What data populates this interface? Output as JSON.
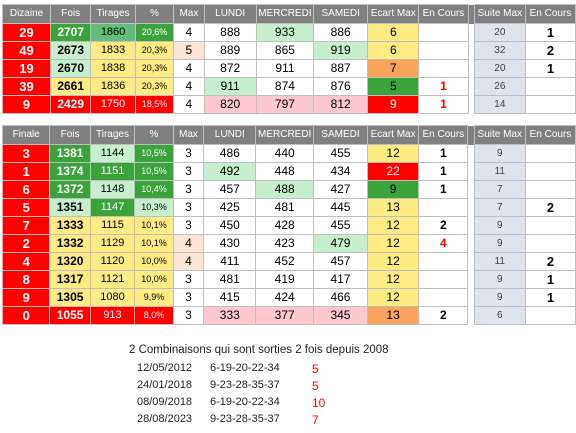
{
  "table1": {
    "headers": [
      "Dizaine",
      "Fois",
      "Tirages",
      "%",
      "Max",
      "LUNDI",
      "MERCREDI",
      "SAMEDI",
      "Ecart Max",
      "En Cours",
      "Suite Max",
      "En Cours"
    ],
    "rows": [
      {
        "label": "29",
        "fois": "2707",
        "tirages": "1860",
        "pct": "20,6%",
        "max": "4",
        "lundi": "888",
        "mercredi": "933",
        "samedi": "886",
        "ecart": "6",
        "encours": "",
        "suite": "20",
        "encours2": "1"
      },
      {
        "label": "49",
        "fois": "2673",
        "tirages": "1833",
        "pct": "20,3%",
        "max": "5",
        "lundi": "889",
        "mercredi": "865",
        "samedi": "919",
        "ecart": "6",
        "encours": "",
        "suite": "32",
        "encours2": "2"
      },
      {
        "label": "19",
        "fois": "2670",
        "tirages": "1838",
        "pct": "20,3%",
        "max": "4",
        "lundi": "872",
        "mercredi": "911",
        "samedi": "887",
        "ecart": "7",
        "encours": "",
        "suite": "20",
        "encours2": "1"
      },
      {
        "label": "39",
        "fois": "2661",
        "tirages": "1836",
        "pct": "20,3%",
        "max": "4",
        "lundi": "911",
        "mercredi": "874",
        "samedi": "876",
        "ecart": "5",
        "encours": "1",
        "suite": "26",
        "encours2": ""
      },
      {
        "label": "9",
        "fois": "2429",
        "tirages": "1750",
        "pct": "18,5%",
        "max": "4",
        "lundi": "820",
        "mercredi": "797",
        "samedi": "812",
        "ecart": "9",
        "encours": "1",
        "suite": "14",
        "encours2": ""
      }
    ]
  },
  "table2": {
    "headers": [
      "Finale",
      "Fois",
      "Tirages",
      "%",
      "Max",
      "LUNDI",
      "MERCREDI",
      "SAMEDI",
      "Ecart Max",
      "En Cours",
      "Suite Max",
      "En Cours"
    ],
    "rows": [
      {
        "label": "3",
        "fois": "1381",
        "tirages": "1144",
        "pct": "10,5%",
        "max": "3",
        "lundi": "486",
        "mercredi": "440",
        "samedi": "455",
        "ecart": "12",
        "encours": "1",
        "suite": "9",
        "encours2": ""
      },
      {
        "label": "1",
        "fois": "1374",
        "tirages": "1151",
        "pct": "10,5%",
        "max": "3",
        "lundi": "492",
        "mercredi": "448",
        "samedi": "434",
        "ecart": "22",
        "encours": "1",
        "suite": "11",
        "encours2": ""
      },
      {
        "label": "6",
        "fois": "1372",
        "tirages": "1148",
        "pct": "10,4%",
        "max": "3",
        "lundi": "457",
        "mercredi": "488",
        "samedi": "427",
        "ecart": "9",
        "encours": "1",
        "suite": "7",
        "encours2": ""
      },
      {
        "label": "5",
        "fois": "1351",
        "tirages": "1147",
        "pct": "10,3%",
        "max": "3",
        "lundi": "425",
        "mercredi": "481",
        "samedi": "445",
        "ecart": "13",
        "encours": "",
        "suite": "7",
        "encours2": "2"
      },
      {
        "label": "7",
        "fois": "1333",
        "tirages": "1115",
        "pct": "10,1%",
        "max": "3",
        "lundi": "450",
        "mercredi": "428",
        "samedi": "455",
        "ecart": "12",
        "encours": "2",
        "suite": "9",
        "encours2": ""
      },
      {
        "label": "2",
        "fois": "1332",
        "tirages": "1129",
        "pct": "10,1%",
        "max": "4",
        "lundi": "430",
        "mercredi": "423",
        "samedi": "479",
        "ecart": "12",
        "encours": "4",
        "suite": "9",
        "encours2": ""
      },
      {
        "label": "4",
        "fois": "1320",
        "tirages": "1120",
        "pct": "10,0%",
        "max": "4",
        "lundi": "411",
        "mercredi": "452",
        "samedi": "457",
        "ecart": "12",
        "encours": "",
        "suite": "11",
        "encours2": "2"
      },
      {
        "label": "8",
        "fois": "1317",
        "tirages": "1121",
        "pct": "10,0%",
        "max": "3",
        "lundi": "481",
        "mercredi": "419",
        "samedi": "417",
        "ecart": "12",
        "encours": "",
        "suite": "9",
        "encours2": "1"
      },
      {
        "label": "9",
        "fois": "1305",
        "tirages": "1080",
        "pct": "9,9%",
        "max": "3",
        "lundi": "415",
        "mercredi": "424",
        "samedi": "466",
        "ecart": "12",
        "encours": "",
        "suite": "9",
        "encours2": "1"
      },
      {
        "label": "0",
        "fois": "1055",
        "tirages": "913",
        "pct": "8,0%",
        "max": "3",
        "lundi": "333",
        "mercredi": "377",
        "samedi": "345",
        "ecart": "13",
        "encours": "2",
        "suite": "6",
        "encours2": ""
      }
    ]
  },
  "combinations": {
    "title": "2 Combinaisons qui sont sorties 2 fois depuis 2008",
    "rows": [
      {
        "date": "12/05/2012",
        "numbers": "6-19-20-22-34",
        "ecart": "5"
      },
      {
        "date": "24/01/2018",
        "numbers": "9-23-28-35-37",
        "ecart": "5"
      },
      {
        "date": "08/09/2018",
        "numbers": "6-19-20-22-34",
        "ecart": "10"
      },
      {
        "date": "28/08/2023",
        "numbers": "9-23-28-35-37",
        "ecart": "7"
      }
    ]
  },
  "colors": {
    "red": "#ff0000",
    "green_dark": "#3aa33a",
    "green_mid": "#63be7b",
    "green_light": "#c6efce",
    "yellow": "#ffeb84",
    "orange": "#f8a45c",
    "salmon": "#ffc7ce",
    "peach": "#fce4d6",
    "blue_grey": "#dde4ee",
    "header_grey": "#808080"
  }
}
